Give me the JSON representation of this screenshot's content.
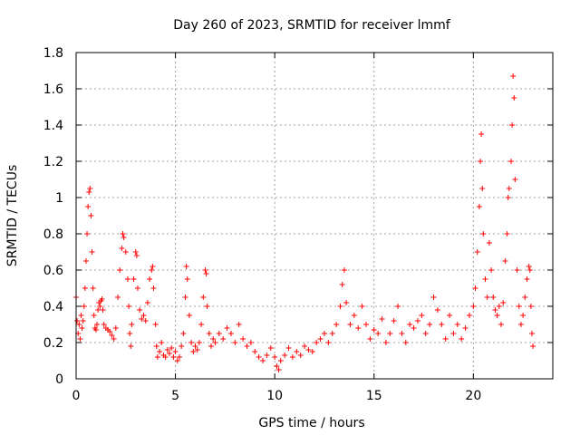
{
  "chart_data": {
    "type": "scatter",
    "title": "Day 260 of 2023, SRMTID for receiver lmmf",
    "xlabel": "GPS time / hours",
    "ylabel": "SRMTID / TECUs",
    "xlim": [
      0,
      24
    ],
    "ylim": [
      0,
      1.8
    ],
    "xticks": [
      0,
      5,
      10,
      15,
      20
    ],
    "xtick_labels": [
      "0",
      "5",
      "10",
      "15",
      "20"
    ],
    "yticks": [
      0,
      0.2,
      0.4,
      0.6,
      0.8,
      1.0,
      1.2,
      1.4,
      1.6,
      1.8
    ],
    "ytick_labels": [
      "0",
      "0.2",
      "0.4",
      "0.6",
      "0.8",
      "1",
      "1.2",
      "1.4",
      "1.6",
      "1.8"
    ],
    "grid": true,
    "marker": "plus",
    "color": "#ff0000",
    "series": [
      {
        "name": "SRMTID",
        "points": [
          [
            0.0,
            0.45
          ],
          [
            0.05,
            0.32
          ],
          [
            0.1,
            0.25
          ],
          [
            0.15,
            0.3
          ],
          [
            0.2,
            0.22
          ],
          [
            0.25,
            0.35
          ],
          [
            0.3,
            0.28
          ],
          [
            0.35,
            0.32
          ],
          [
            0.4,
            0.4
          ],
          [
            0.45,
            0.5
          ],
          [
            0.5,
            0.65
          ],
          [
            0.55,
            0.8
          ],
          [
            0.6,
            0.95
          ],
          [
            0.65,
            1.03
          ],
          [
            0.7,
            1.05
          ],
          [
            0.75,
            0.9
          ],
          [
            0.8,
            0.7
          ],
          [
            0.85,
            0.5
          ],
          [
            0.9,
            0.35
          ],
          [
            0.95,
            0.28
          ],
          [
            1.0,
            0.27
          ],
          [
            1.05,
            0.3
          ],
          [
            1.1,
            0.38
          ],
          [
            1.15,
            0.42
          ],
          [
            1.2,
            0.4
          ],
          [
            1.25,
            0.43
          ],
          [
            1.3,
            0.44
          ],
          [
            1.35,
            0.38
          ],
          [
            1.4,
            0.3
          ],
          [
            1.5,
            0.28
          ],
          [
            1.6,
            0.27
          ],
          [
            1.7,
            0.26
          ],
          [
            1.8,
            0.24
          ],
          [
            1.9,
            0.22
          ],
          [
            2.0,
            0.28
          ],
          [
            2.1,
            0.45
          ],
          [
            2.2,
            0.6
          ],
          [
            2.3,
            0.72
          ],
          [
            2.35,
            0.8
          ],
          [
            2.4,
            0.78
          ],
          [
            2.5,
            0.7
          ],
          [
            2.6,
            0.55
          ],
          [
            2.65,
            0.4
          ],
          [
            2.7,
            0.25
          ],
          [
            2.75,
            0.18
          ],
          [
            2.8,
            0.3
          ],
          [
            2.9,
            0.55
          ],
          [
            3.0,
            0.7
          ],
          [
            3.05,
            0.68
          ],
          [
            3.1,
            0.5
          ],
          [
            3.2,
            0.38
          ],
          [
            3.3,
            0.33
          ],
          [
            3.4,
            0.35
          ],
          [
            3.5,
            0.32
          ],
          [
            3.6,
            0.42
          ],
          [
            3.7,
            0.55
          ],
          [
            3.8,
            0.6
          ],
          [
            3.85,
            0.62
          ],
          [
            3.9,
            0.5
          ],
          [
            4.0,
            0.3
          ],
          [
            4.05,
            0.18
          ],
          [
            4.1,
            0.12
          ],
          [
            4.2,
            0.15
          ],
          [
            4.3,
            0.2
          ],
          [
            4.4,
            0.13
          ],
          [
            4.5,
            0.12
          ],
          [
            4.6,
            0.16
          ],
          [
            4.7,
            0.14
          ],
          [
            4.8,
            0.17
          ],
          [
            4.9,
            0.12
          ],
          [
            5.0,
            0.15
          ],
          [
            5.1,
            0.1
          ],
          [
            5.2,
            0.12
          ],
          [
            5.3,
            0.18
          ],
          [
            5.4,
            0.25
          ],
          [
            5.5,
            0.45
          ],
          [
            5.55,
            0.62
          ],
          [
            5.6,
            0.55
          ],
          [
            5.7,
            0.35
          ],
          [
            5.8,
            0.2
          ],
          [
            5.9,
            0.15
          ],
          [
            6.0,
            0.18
          ],
          [
            6.1,
            0.16
          ],
          [
            6.2,
            0.2
          ],
          [
            6.3,
            0.3
          ],
          [
            6.4,
            0.45
          ],
          [
            6.5,
            0.6
          ],
          [
            6.55,
            0.58
          ],
          [
            6.6,
            0.4
          ],
          [
            6.7,
            0.25
          ],
          [
            6.8,
            0.18
          ],
          [
            6.9,
            0.22
          ],
          [
            7.0,
            0.2
          ],
          [
            7.2,
            0.25
          ],
          [
            7.4,
            0.22
          ],
          [
            7.6,
            0.28
          ],
          [
            7.8,
            0.25
          ],
          [
            8.0,
            0.2
          ],
          [
            8.2,
            0.3
          ],
          [
            8.4,
            0.22
          ],
          [
            8.6,
            0.18
          ],
          [
            8.8,
            0.2
          ],
          [
            9.0,
            0.15
          ],
          [
            9.2,
            0.12
          ],
          [
            9.4,
            0.1
          ],
          [
            9.6,
            0.13
          ],
          [
            9.8,
            0.17
          ],
          [
            10.0,
            0.12
          ],
          [
            10.1,
            0.07
          ],
          [
            10.2,
            0.05
          ],
          [
            10.3,
            0.1
          ],
          [
            10.5,
            0.13
          ],
          [
            10.7,
            0.17
          ],
          [
            10.9,
            0.12
          ],
          [
            11.1,
            0.15
          ],
          [
            11.3,
            0.13
          ],
          [
            11.5,
            0.18
          ],
          [
            11.7,
            0.16
          ],
          [
            11.9,
            0.15
          ],
          [
            12.1,
            0.2
          ],
          [
            12.3,
            0.22
          ],
          [
            12.5,
            0.25
          ],
          [
            12.7,
            0.2
          ],
          [
            12.9,
            0.25
          ],
          [
            13.1,
            0.3
          ],
          [
            13.3,
            0.4
          ],
          [
            13.4,
            0.52
          ],
          [
            13.5,
            0.6
          ],
          [
            13.6,
            0.42
          ],
          [
            13.8,
            0.3
          ],
          [
            14.0,
            0.35
          ],
          [
            14.2,
            0.28
          ],
          [
            14.4,
            0.4
          ],
          [
            14.6,
            0.3
          ],
          [
            14.8,
            0.22
          ],
          [
            15.0,
            0.27
          ],
          [
            15.2,
            0.25
          ],
          [
            15.4,
            0.33
          ],
          [
            15.6,
            0.2
          ],
          [
            15.8,
            0.25
          ],
          [
            16.0,
            0.32
          ],
          [
            16.2,
            0.4
          ],
          [
            16.4,
            0.25
          ],
          [
            16.6,
            0.2
          ],
          [
            16.8,
            0.3
          ],
          [
            17.0,
            0.28
          ],
          [
            17.2,
            0.32
          ],
          [
            17.4,
            0.35
          ],
          [
            17.6,
            0.25
          ],
          [
            17.8,
            0.3
          ],
          [
            18.0,
            0.45
          ],
          [
            18.2,
            0.38
          ],
          [
            18.4,
            0.3
          ],
          [
            18.6,
            0.22
          ],
          [
            18.8,
            0.35
          ],
          [
            19.0,
            0.25
          ],
          [
            19.2,
            0.3
          ],
          [
            19.4,
            0.22
          ],
          [
            19.6,
            0.28
          ],
          [
            19.8,
            0.35
          ],
          [
            20.0,
            0.4
          ],
          [
            20.1,
            0.5
          ],
          [
            20.2,
            0.7
          ],
          [
            20.3,
            0.95
          ],
          [
            20.35,
            1.2
          ],
          [
            20.4,
            1.35
          ],
          [
            20.45,
            1.05
          ],
          [
            20.5,
            0.8
          ],
          [
            20.6,
            0.55
          ],
          [
            20.7,
            0.45
          ],
          [
            20.8,
            0.75
          ],
          [
            20.9,
            0.6
          ],
          [
            21.0,
            0.45
          ],
          [
            21.1,
            0.38
          ],
          [
            21.2,
            0.35
          ],
          [
            21.3,
            0.4
          ],
          [
            21.4,
            0.3
          ],
          [
            21.5,
            0.42
          ],
          [
            21.6,
            0.65
          ],
          [
            21.7,
            0.8
          ],
          [
            21.75,
            1.0
          ],
          [
            21.8,
            1.05
          ],
          [
            21.9,
            1.2
          ],
          [
            21.95,
            1.4
          ],
          [
            22.0,
            1.67
          ],
          [
            22.05,
            1.55
          ],
          [
            22.1,
            1.1
          ],
          [
            22.2,
            0.6
          ],
          [
            22.3,
            0.4
          ],
          [
            22.4,
            0.3
          ],
          [
            22.5,
            0.35
          ],
          [
            22.6,
            0.45
          ],
          [
            22.7,
            0.55
          ],
          [
            22.8,
            0.62
          ],
          [
            22.85,
            0.6
          ],
          [
            22.9,
            0.4
          ],
          [
            22.95,
            0.25
          ],
          [
            23.0,
            0.18
          ]
        ]
      }
    ]
  }
}
